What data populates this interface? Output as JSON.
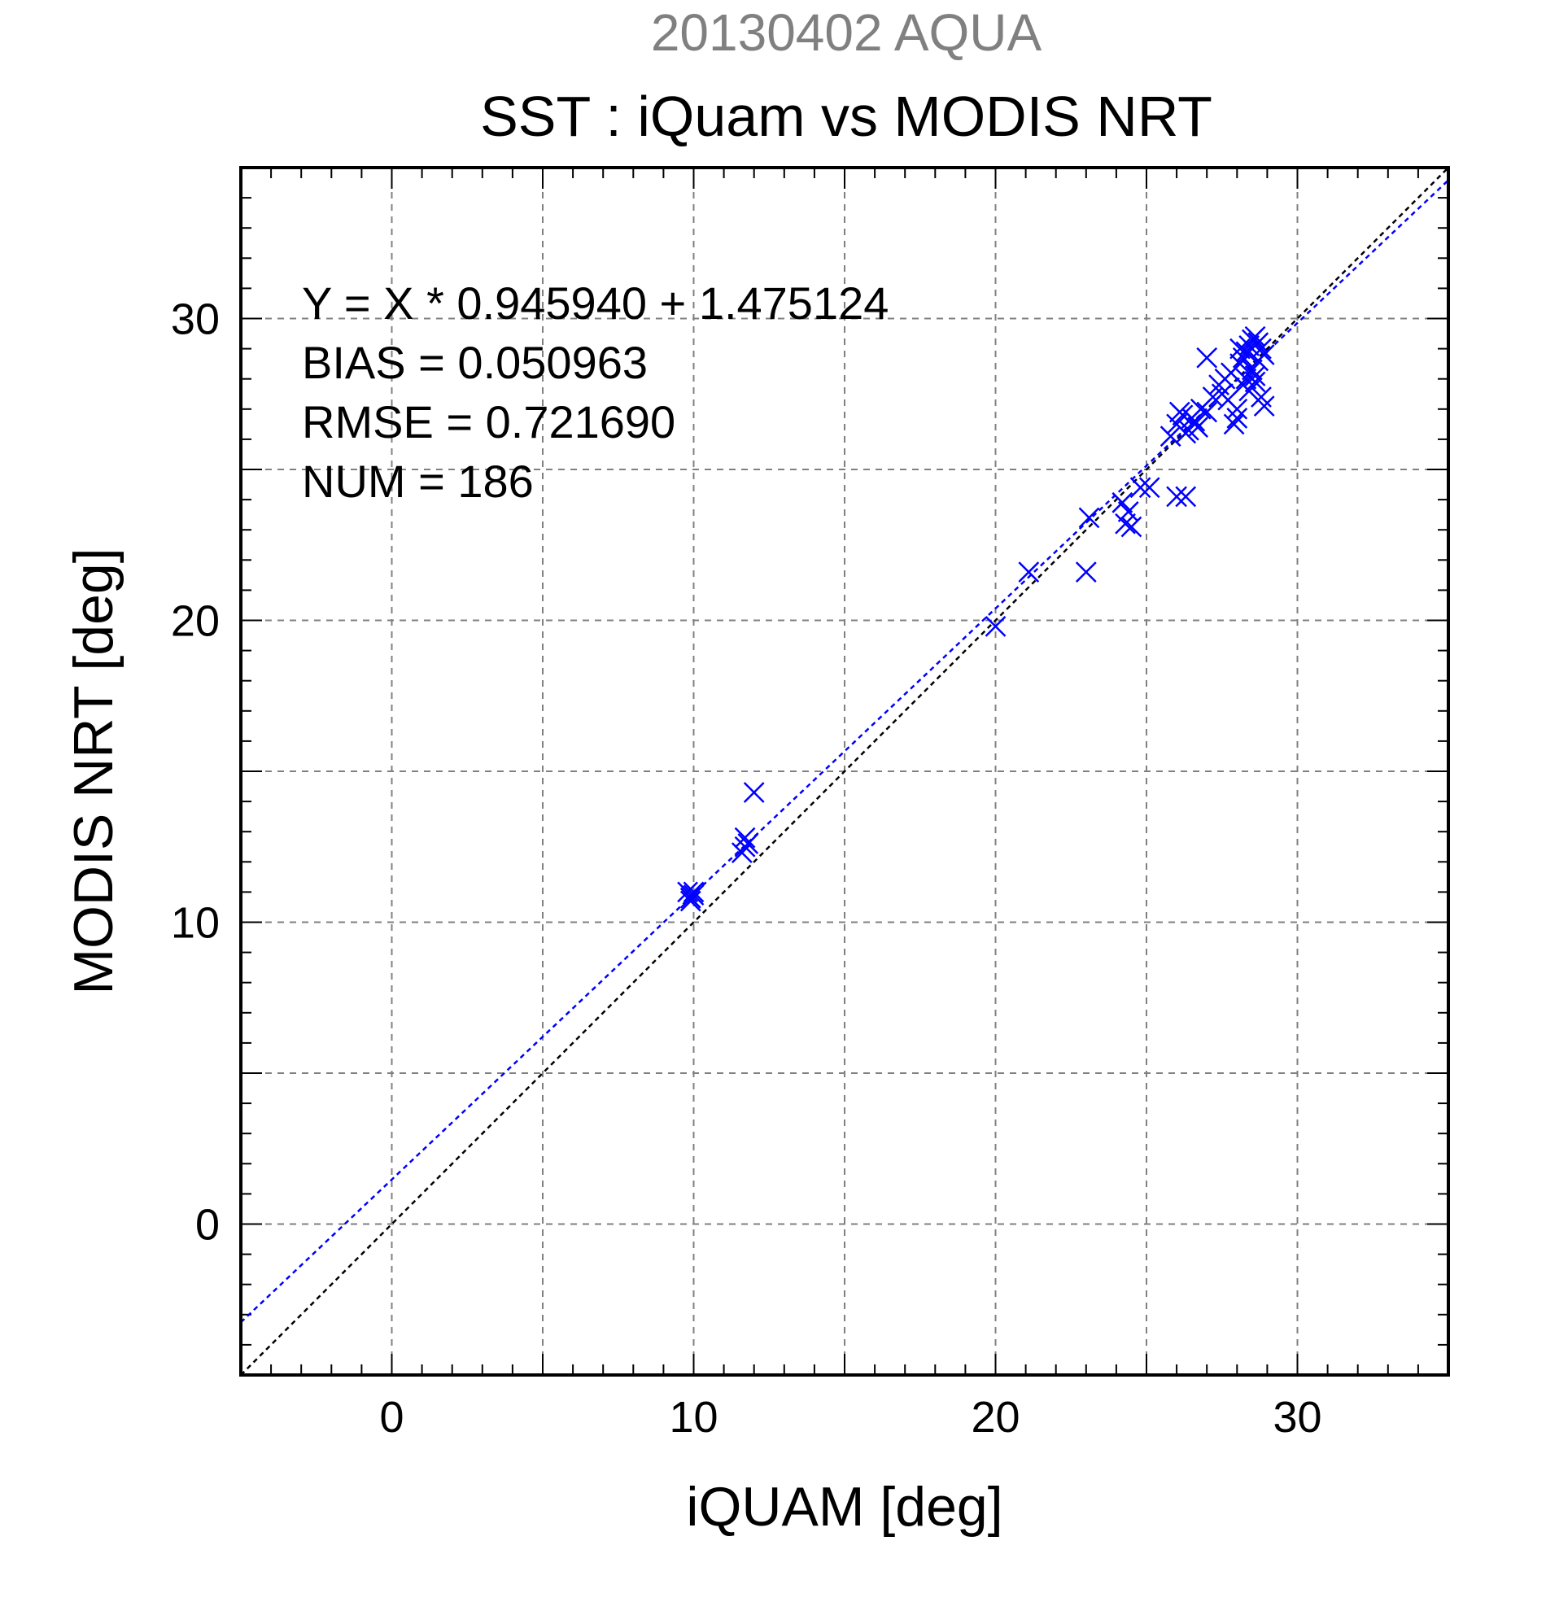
{
  "chart_data": {
    "type": "scatter",
    "supertitle": "20130402 AQUA",
    "title": "SST : iQuam vs MODIS NRT",
    "xlabel": "iQUAM [deg]",
    "ylabel": "MODIS NRT [deg]",
    "xlim": [
      -5,
      35
    ],
    "ylim": [
      -5,
      35
    ],
    "xticks": [
      0,
      10,
      20,
      30
    ],
    "yticks": [
      0,
      10,
      20,
      30
    ],
    "grid": true,
    "stats": [
      "Y = X * 0.945940 + 1.475124",
      "BIAS = 0.050963",
      "RMSE = 0.721690",
      "NUM = 186"
    ],
    "regression": {
      "slope": 0.94594,
      "intercept": 1.475124
    },
    "identity_line": {
      "slope": 1,
      "intercept": 0
    },
    "colors": {
      "points": "#0000ff",
      "fit_line": "#0000ff",
      "identity_line": "#000000",
      "supertitle": "#808080",
      "grid": "#808080"
    },
    "points": [
      [
        9.8,
        11.0
      ],
      [
        9.9,
        10.8
      ],
      [
        10.0,
        11.0
      ],
      [
        9.9,
        10.7
      ],
      [
        10.0,
        10.9
      ],
      [
        11.6,
        12.3
      ],
      [
        11.7,
        12.8
      ],
      [
        11.8,
        12.6
      ],
      [
        11.7,
        12.5
      ],
      [
        12.0,
        14.3
      ],
      [
        20.0,
        19.8
      ],
      [
        21.1,
        21.6
      ],
      [
        23.0,
        21.6
      ],
      [
        23.1,
        23.4
      ],
      [
        24.2,
        23.9
      ],
      [
        24.3,
        23.2
      ],
      [
        24.5,
        23.1
      ],
      [
        24.4,
        23.6
      ],
      [
        24.8,
        24.4
      ],
      [
        25.1,
        24.4
      ],
      [
        26.0,
        24.1
      ],
      [
        26.3,
        24.1
      ],
      [
        25.8,
        26.1
      ],
      [
        26.0,
        26.5
      ],
      [
        26.2,
        26.8
      ],
      [
        26.4,
        26.3
      ],
      [
        26.6,
        26.6
      ],
      [
        26.8,
        27.0
      ],
      [
        26.1,
        26.9
      ],
      [
        26.5,
        26.7
      ],
      [
        26.3,
        26.2
      ],
      [
        26.7,
        26.4
      ],
      [
        27.0,
        26.9
      ],
      [
        27.0,
        28.7
      ],
      [
        27.2,
        27.4
      ],
      [
        27.4,
        27.8
      ],
      [
        27.6,
        28.0
      ],
      [
        27.8,
        28.2
      ],
      [
        27.9,
        26.5
      ],
      [
        28.0,
        27.0
      ],
      [
        27.5,
        27.5
      ],
      [
        27.7,
        27.3
      ],
      [
        28.1,
        28.5
      ],
      [
        28.2,
        28.7
      ],
      [
        28.3,
        28.9
      ],
      [
        28.4,
        29.1
      ],
      [
        28.5,
        29.3
      ],
      [
        28.6,
        29.4
      ],
      [
        28.7,
        29.2
      ],
      [
        28.8,
        29.0
      ],
      [
        28.9,
        28.8
      ],
      [
        28.2,
        27.8
      ],
      [
        28.4,
        27.6
      ],
      [
        28.6,
        27.9
      ],
      [
        28.8,
        27.4
      ],
      [
        28.5,
        28.3
      ],
      [
        28.9,
        27.1
      ],
      [
        28.0,
        26.7
      ],
      [
        28.3,
        28.0
      ],
      [
        28.7,
        28.6
      ],
      [
        28.1,
        29.0
      ],
      [
        28.6,
        28.1
      ]
    ]
  }
}
